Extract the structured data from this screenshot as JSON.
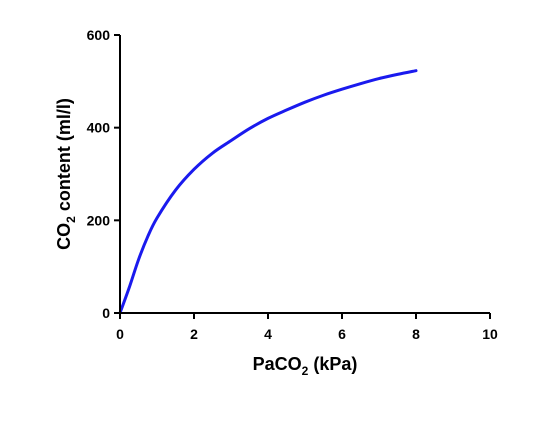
{
  "chart_data": {
    "type": "line",
    "title": "",
    "xlabel": {
      "main": "PaCO",
      "sub": "2",
      "rest": " (kPa)"
    },
    "ylabel": {
      "main": "CO",
      "sub": "2",
      "rest": " content (ml/l)"
    },
    "xlim": [
      0,
      10
    ],
    "ylim": [
      0,
      600
    ],
    "xticks": [
      "0",
      "2",
      "4",
      "6",
      "8",
      "10"
    ],
    "yticks": [
      "0",
      "200",
      "400",
      "600"
    ],
    "grid": false,
    "legend": "none",
    "series": [
      {
        "color": "#1a1aee",
        "x": [
          0,
          0.25,
          0.5,
          0.75,
          1,
          1.5,
          2,
          2.5,
          3,
          3.5,
          4,
          4.5,
          5,
          5.5,
          6,
          6.5,
          7,
          7.5,
          8
        ],
        "y": [
          0,
          55,
          115,
          165,
          205,
          265,
          310,
          345,
          372,
          398,
          420,
          438,
          455,
          470,
          483,
          495,
          506,
          515,
          523
        ]
      }
    ]
  }
}
